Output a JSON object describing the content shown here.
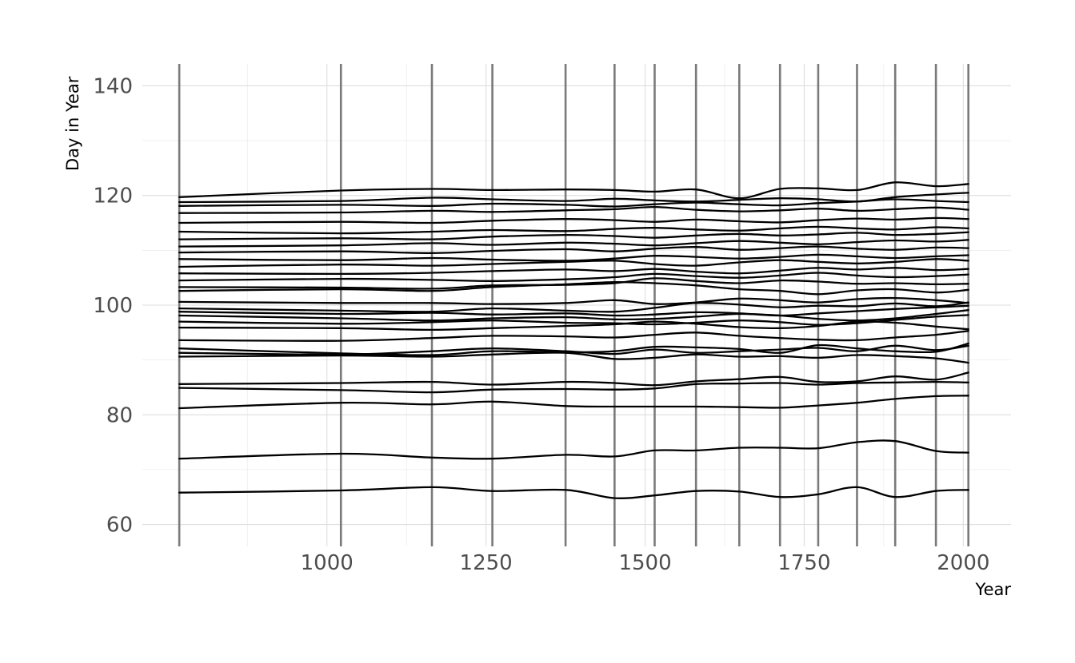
{
  "chart_data": {
    "type": "line",
    "title": "",
    "xlabel": "Year",
    "ylabel": "Day in Year",
    "xlim": [
      710,
      2075
    ],
    "ylim": [
      56,
      144
    ],
    "x_ticks": [
      1000,
      1250,
      1500,
      1750,
      2000
    ],
    "y_ticks": [
      60,
      80,
      100,
      120,
      140
    ],
    "grid": true,
    "legend": "none",
    "line_color": "#000000",
    "vline_color": "#7a7a7a",
    "vertical_lines": [
      768,
      1022,
      1165,
      1260,
      1375,
      1452,
      1515,
      1580,
      1648,
      1712,
      1772,
      1833,
      1893,
      1957,
      2008
    ],
    "x": [
      768,
      1022,
      1165,
      1260,
      1375,
      1452,
      1515,
      1580,
      1648,
      1712,
      1772,
      1833,
      1893,
      1957,
      2008
    ],
    "series": [
      {
        "values": [
          65.8,
          66.2,
          66.8,
          66.1,
          66.3,
          64.8,
          65.3,
          66.1,
          66.0,
          65.0,
          65.5,
          66.8,
          65.0,
          66.1,
          66.3
        ]
      },
      {
        "values": [
          72.0,
          72.9,
          72.2,
          72.0,
          72.7,
          72.4,
          73.5,
          73.5,
          74.0,
          74.0,
          73.9,
          75.0,
          75.2,
          73.4,
          73.1
        ]
      },
      {
        "values": [
          81.2,
          82.2,
          81.9,
          82.4,
          81.6,
          81.5,
          81.5,
          81.5,
          81.4,
          81.3,
          81.7,
          82.2,
          82.9,
          83.4,
          83.5
        ]
      },
      {
        "values": [
          84.9,
          84.5,
          84.1,
          84.6,
          84.7,
          84.6,
          84.8,
          85.6,
          85.7,
          85.8,
          85.5,
          85.8,
          85.9,
          86.0,
          85.9
        ]
      },
      {
        "values": [
          85.6,
          85.8,
          86.0,
          85.5,
          86.0,
          85.8,
          85.4,
          86.1,
          86.5,
          86.9,
          86.0,
          86.1,
          87.0,
          86.4,
          87.7
        ]
      },
      {
        "values": [
          90.6,
          90.8,
          90.6,
          91.0,
          91.3,
          90.2,
          90.4,
          91.0,
          90.6,
          90.7,
          90.4,
          90.9,
          90.7,
          90.3,
          89.5
        ]
      },
      {
        "values": [
          91.3,
          91.0,
          91.6,
          92.1,
          91.6,
          91.1,
          91.9,
          91.3,
          91.6,
          91.9,
          92.2,
          91.6,
          92.6,
          91.8,
          92.6
        ]
      },
      {
        "values": [
          92.1,
          91.2,
          90.9,
          91.6,
          91.4,
          91.6,
          92.4,
          92.3,
          92.0,
          91.3,
          92.7,
          92.1,
          91.6,
          91.5,
          93.0
        ]
      },
      {
        "values": [
          93.6,
          93.5,
          94.0,
          94.4,
          94.3,
          94.1,
          94.6,
          95.0,
          94.4,
          94.0,
          93.7,
          93.6,
          94.1,
          94.6,
          95.3
        ]
      },
      {
        "values": [
          95.9,
          95.8,
          95.5,
          95.8,
          96.2,
          96.5,
          97.0,
          96.6,
          96.0,
          95.8,
          96.2,
          97.0,
          96.8,
          96.1,
          95.6
        ]
      },
      {
        "values": [
          97.0,
          96.6,
          96.9,
          97.2,
          96.8,
          96.7,
          96.5,
          96.8,
          97.2,
          96.9,
          96.4,
          96.7,
          97.3,
          97.9,
          98.2
        ]
      },
      {
        "values": [
          98.1,
          97.6,
          97.2,
          97.6,
          97.8,
          97.4,
          97.5,
          97.9,
          98.4,
          98.1,
          97.5,
          97.2,
          97.6,
          98.4,
          99.1
        ]
      },
      {
        "values": [
          98.8,
          98.4,
          98.6,
          98.3,
          98.5,
          98.1,
          98.3,
          98.7,
          98.5,
          98.1,
          98.5,
          98.9,
          99.3,
          99.6,
          99.9
        ]
      },
      {
        "values": [
          99.4,
          99.0,
          98.8,
          99.4,
          99.0,
          98.8,
          99.5,
          100.4,
          100.1,
          99.6,
          99.9,
          99.8,
          100.3,
          99.8,
          100.5
        ]
      },
      {
        "values": [
          100.6,
          100.4,
          100.4,
          100.2,
          100.4,
          100.9,
          100.2,
          100.5,
          101.2,
          100.9,
          100.5,
          101.1,
          101.3,
          100.9,
          100.4
        ]
      },
      {
        "values": [
          102.6,
          102.9,
          102.6,
          103.3,
          103.8,
          104.2,
          104.0,
          103.6,
          102.9,
          102.6,
          102.0,
          102.7,
          102.9,
          102.3,
          102.8
        ]
      },
      {
        "values": [
          103.3,
          103.2,
          103.0,
          103.6,
          103.7,
          104.0,
          104.9,
          104.4,
          104.0,
          104.5,
          104.3,
          103.9,
          104.0,
          103.8,
          103.9
        ]
      },
      {
        "values": [
          104.5,
          104.8,
          104.6,
          104.4,
          104.7,
          105.1,
          105.7,
          105.3,
          105.0,
          105.4,
          105.9,
          105.4,
          105.1,
          105.3,
          105.6
        ]
      },
      {
        "values": [
          105.8,
          105.7,
          105.9,
          106.2,
          106.5,
          106.2,
          106.6,
          106.1,
          105.8,
          106.3,
          106.8,
          106.5,
          106.8,
          106.4,
          106.6
        ]
      },
      {
        "values": [
          107.0,
          107.4,
          107.2,
          107.5,
          107.9,
          108.1,
          107.5,
          107.2,
          107.8,
          108.2,
          107.9,
          107.6,
          107.9,
          108.4,
          108.1
        ]
      },
      {
        "values": [
          108.4,
          108.2,
          108.6,
          108.3,
          108.1,
          108.5,
          109.0,
          108.8,
          108.5,
          108.8,
          109.2,
          108.9,
          108.6,
          108.9,
          109.1
        ]
      },
      {
        "values": [
          109.6,
          109.8,
          109.5,
          109.9,
          110.2,
          109.8,
          110.3,
          110.6,
          110.1,
          110.4,
          110.7,
          110.3,
          110.1,
          110.5,
          110.4
        ]
      },
      {
        "values": [
          110.7,
          110.9,
          111.3,
          111.0,
          111.4,
          111.2,
          110.9,
          111.3,
          111.7,
          111.4,
          111.1,
          111.5,
          111.8,
          111.6,
          111.9
        ]
      },
      {
        "values": [
          112.0,
          112.2,
          112.0,
          112.5,
          112.8,
          112.6,
          112.3,
          112.7,
          113.0,
          112.7,
          112.9,
          113.2,
          112.8,
          113.0,
          113.3
        ]
      },
      {
        "values": [
          113.4,
          113.1,
          113.4,
          113.7,
          113.5,
          113.9,
          114.1,
          113.8,
          113.6,
          114.0,
          114.3,
          114.0,
          113.8,
          114.2,
          114.0
        ]
      },
      {
        "values": [
          115.0,
          115.2,
          115.0,
          115.4,
          115.7,
          115.5,
          115.2,
          115.6,
          115.3,
          115.1,
          115.5,
          115.8,
          115.6,
          115.9,
          115.7
        ]
      },
      {
        "values": [
          116.8,
          116.9,
          117.2,
          117.0,
          117.3,
          117.5,
          117.9,
          117.4,
          117.1,
          117.3,
          117.6,
          117.2,
          117.5,
          117.8,
          117.4
        ]
      },
      {
        "values": [
          118.1,
          118.3,
          118.1,
          118.5,
          118.3,
          118.0,
          118.4,
          118.7,
          118.4,
          118.2,
          118.6,
          118.9,
          119.3,
          119.0,
          118.8
        ]
      },
      {
        "values": [
          118.8,
          119.0,
          119.6,
          119.3,
          119.0,
          119.4,
          119.1,
          118.9,
          119.2,
          119.5,
          119.3,
          118.9,
          119.7,
          120.2,
          120.5
        ]
      },
      {
        "values": [
          119.7,
          120.9,
          121.2,
          121.0,
          121.1,
          121.0,
          120.7,
          121.1,
          119.5,
          121.2,
          121.3,
          121.0,
          122.4,
          121.7,
          122.1
        ]
      }
    ]
  }
}
